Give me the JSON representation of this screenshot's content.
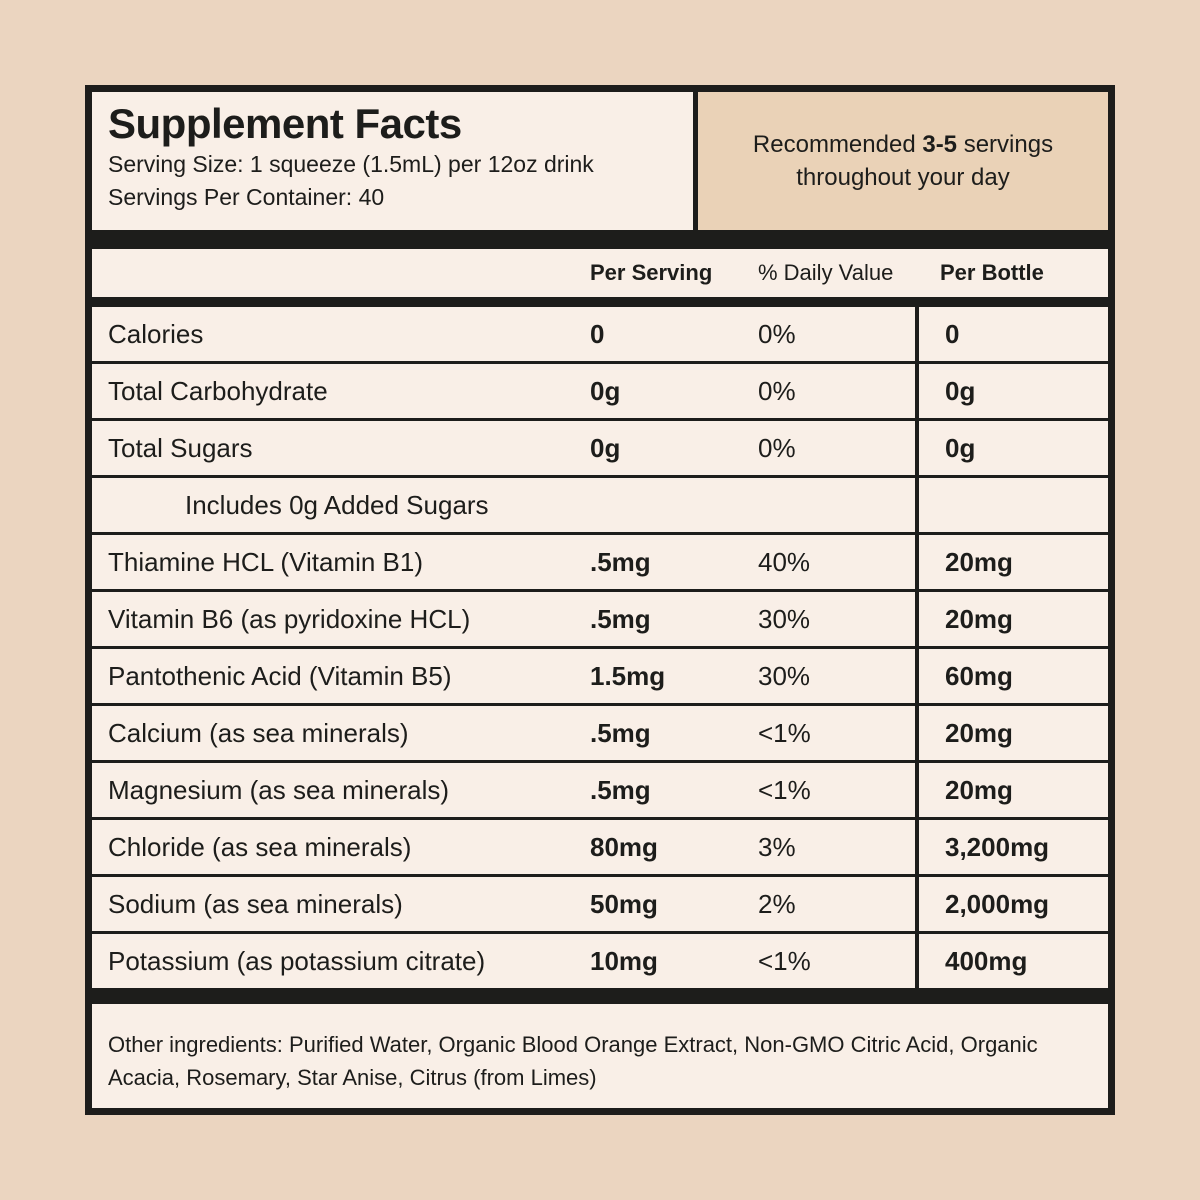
{
  "header": {
    "title": "Supplement Facts",
    "serving_size": "Serving Size: 1 squeeze (1.5mL) per 12oz drink",
    "servings_per_container": "Servings Per Container: 40",
    "recommendation_prefix": "Recommended ",
    "recommendation_bold": "3-5",
    "recommendation_suffix": " servings throughout your day"
  },
  "columns": {
    "per_serving": "Per Serving",
    "daily_value": "% Daily Value",
    "per_bottle": "Per Bottle"
  },
  "rows": [
    {
      "label": "Calories",
      "per_serving": "0",
      "daily_value": "0%",
      "per_bottle": "0",
      "indent": false
    },
    {
      "label": "Total Carbohydrate",
      "per_serving": "0g",
      "daily_value": "0%",
      "per_bottle": "0g",
      "indent": false
    },
    {
      "label": "Total Sugars",
      "per_serving": "0g",
      "daily_value": "0%",
      "per_bottle": "0g",
      "indent": false
    },
    {
      "label": "Includes 0g Added Sugars",
      "per_serving": "",
      "daily_value": "",
      "per_bottle": "",
      "indent": true
    },
    {
      "label": "Thiamine HCL (Vitamin B1)",
      "per_serving": ".5mg",
      "daily_value": "40%",
      "per_bottle": "20mg",
      "indent": false
    },
    {
      "label": "Vitamin B6 (as pyridoxine HCL)",
      "per_serving": ".5mg",
      "daily_value": "30%",
      "per_bottle": "20mg",
      "indent": false
    },
    {
      "label": "Pantothenic Acid (Vitamin B5)",
      "per_serving": "1.5mg",
      "daily_value": "30%",
      "per_bottle": "60mg",
      "indent": false
    },
    {
      "label": "Calcium (as sea minerals)",
      "per_serving": ".5mg",
      "daily_value": "<1%",
      "per_bottle": "20mg",
      "indent": false
    },
    {
      "label": "Magnesium (as sea minerals)",
      "per_serving": ".5mg",
      "daily_value": "<1%",
      "per_bottle": "20mg",
      "indent": false
    },
    {
      "label": "Chloride (as sea minerals)",
      "per_serving": "80mg",
      "daily_value": "3%",
      "per_bottle": "3,200mg",
      "indent": false
    },
    {
      "label": "Sodium (as sea minerals)",
      "per_serving": "50mg",
      "daily_value": "2%",
      "per_bottle": "2,000mg",
      "indent": false
    },
    {
      "label": "Potassium (as potassium citrate)",
      "per_serving": "10mg",
      "daily_value": "<1%",
      "per_bottle": "400mg",
      "indent": false
    }
  ],
  "footer": {
    "other_ingredients": "Other ingredients: Purified Water, Organic Blood Orange Extract, Non-GMO Citric Acid, Organic Acacia, Rosemary, Star Anise, Citrus (from Limes)"
  },
  "colors": {
    "page_background": "#ebd5c0",
    "panel_background": "#f9efe7",
    "recommendation_background": "#ead2b7",
    "border_black": "#1d1d1b"
  }
}
